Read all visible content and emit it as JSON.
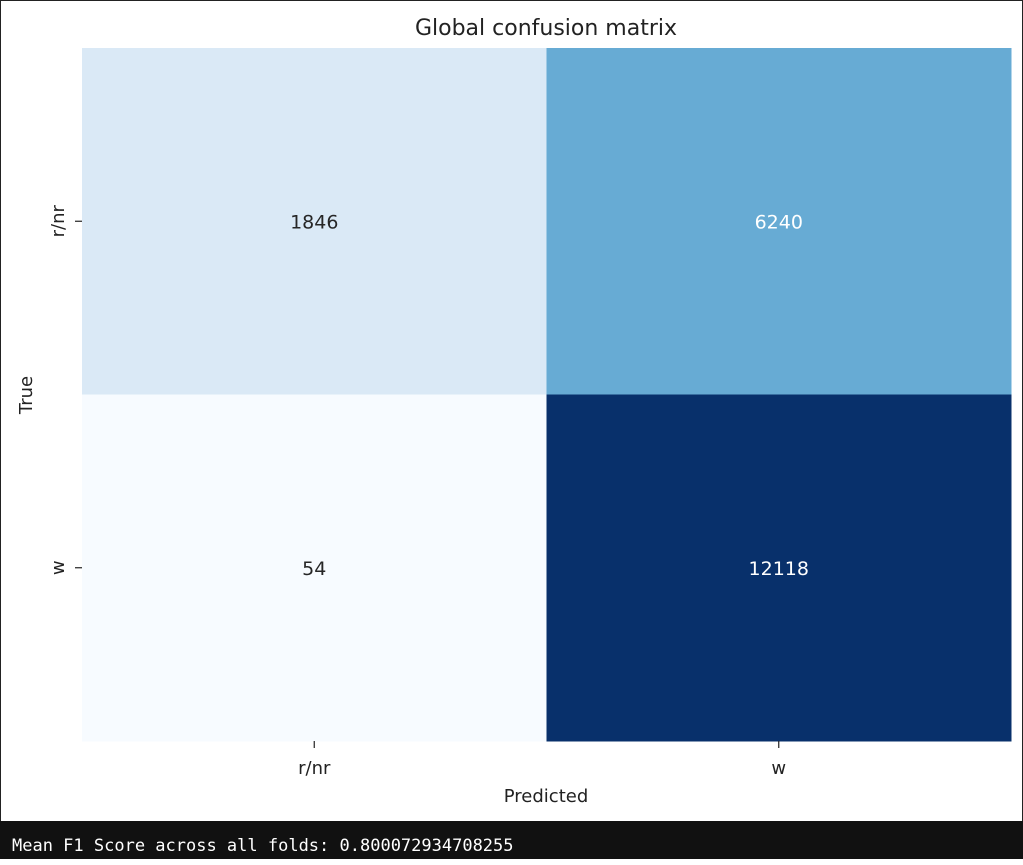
{
  "chart_data": {
    "type": "heatmap",
    "title": "Global confusion matrix",
    "xlabel": "Predicted",
    "ylabel": "True",
    "x_categories": [
      "r/nr",
      "w"
    ],
    "y_categories": [
      "r/nr",
      "w"
    ],
    "matrix": [
      [
        1846,
        6240
      ],
      [
        54,
        12118
      ]
    ],
    "colormap": "Blues",
    "colorbar": false,
    "colors": {
      "low": "#f7fbff",
      "mid_low": "#d7e6f4",
      "mid": "#67aad4",
      "high": "#08306b",
      "text_dark": "#262626",
      "text_light": "#ffffff"
    }
  },
  "output": {
    "text": "Mean F1 Score across all folds: 0.800072934708255"
  }
}
